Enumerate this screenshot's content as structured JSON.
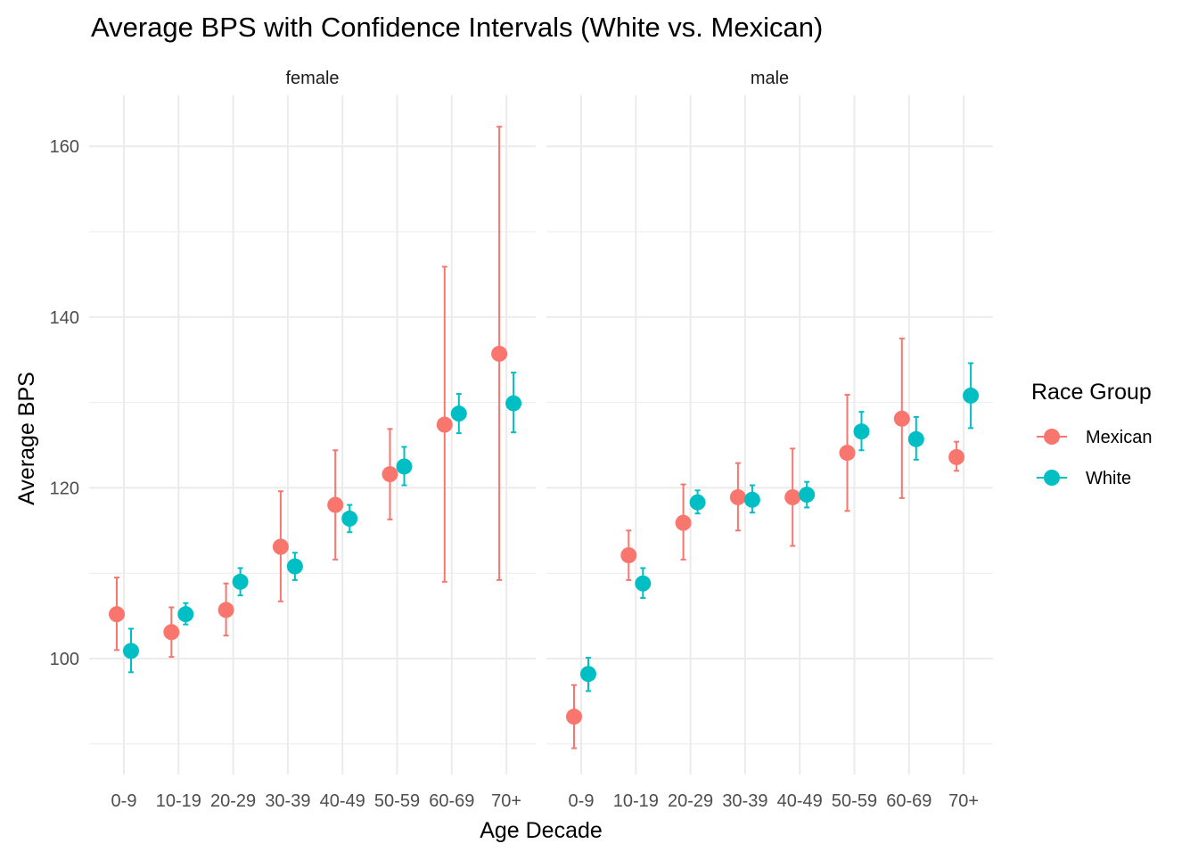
{
  "chart_data": {
    "type": "scatter",
    "title": "Average BPS with Confidence Intervals (White vs. Mexican)",
    "xlabel": "Age Decade",
    "ylabel": "Average BPS",
    "categories": [
      "0-9",
      "10-19",
      "20-29",
      "30-39",
      "40-49",
      "50-59",
      "60-69",
      "70+"
    ],
    "yticks": [
      100,
      120,
      140,
      160
    ],
    "ylim": [
      86,
      166
    ],
    "grid": true,
    "legend": {
      "title": "Race Group",
      "position": "right",
      "entries": [
        {
          "name": "Mexican",
          "color": "#F8766D"
        },
        {
          "name": "White",
          "color": "#00BFC4"
        }
      ]
    },
    "panels": [
      {
        "label": "female",
        "series": [
          {
            "name": "Mexican",
            "color": "#F8766D",
            "values": [
              105.2,
              103.1,
              105.7,
              113.1,
              118.0,
              121.6,
              127.4,
              135.7
            ],
            "ci_low": [
              101.0,
              100.2,
              102.7,
              106.7,
              111.6,
              116.3,
              109.0,
              109.2
            ],
            "ci_high": [
              109.5,
              106.0,
              108.8,
              119.6,
              124.4,
              126.9,
              145.9,
              162.3
            ]
          },
          {
            "name": "White",
            "color": "#00BFC4",
            "values": [
              100.9,
              105.2,
              109.0,
              110.8,
              116.4,
              122.5,
              128.7,
              129.9
            ],
            "ci_low": [
              98.4,
              104.0,
              107.4,
              109.2,
              114.8,
              120.3,
              126.4,
              126.5
            ],
            "ci_high": [
              103.5,
              106.5,
              110.6,
              112.4,
              118.0,
              124.8,
              131.0,
              133.5
            ]
          }
        ]
      },
      {
        "label": "male",
        "series": [
          {
            "name": "Mexican",
            "color": "#F8766D",
            "values": [
              93.2,
              112.1,
              115.9,
              118.9,
              118.9,
              124.1,
              128.1,
              123.6
            ],
            "ci_low": [
              89.5,
              109.2,
              111.6,
              115.0,
              113.2,
              117.3,
              118.8,
              122.0
            ],
            "ci_high": [
              96.9,
              115.0,
              120.4,
              122.9,
              124.6,
              130.9,
              137.5,
              125.4
            ]
          },
          {
            "name": "White",
            "color": "#00BFC4",
            "values": [
              98.2,
              108.8,
              118.3,
              118.6,
              119.2,
              126.6,
              125.7,
              130.8
            ],
            "ci_low": [
              96.2,
              107.1,
              117.0,
              117.1,
              117.7,
              124.4,
              123.3,
              127.0
            ],
            "ci_high": [
              100.1,
              110.6,
              119.7,
              120.3,
              120.7,
              128.9,
              128.3,
              134.6
            ]
          }
        ]
      }
    ]
  }
}
